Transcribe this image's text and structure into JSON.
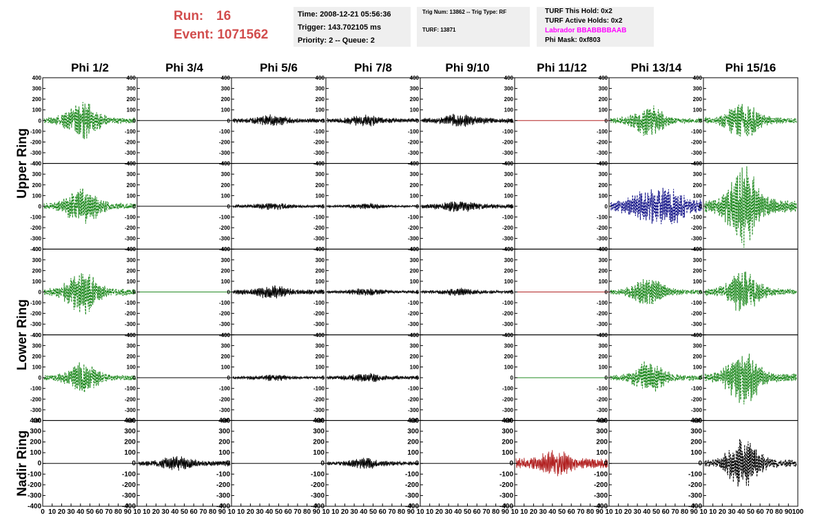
{
  "header": {
    "run_label": "Run:",
    "run_value": "16",
    "event_label": "Event:",
    "event_value": "1071562",
    "time_line": "Time: 2008-12-21 05:56:36",
    "trigger_line": "Trigger: 143.702105 ms",
    "priority_line": "Priority: 2 -- Queue: 2",
    "trig_line": "Trig Num: 13862 -- Trig Type: RF",
    "turf_line": "TURF: 13871",
    "hold_line": "TURF This Hold: 0x2",
    "active_holds_line": "TURF Active Holds: 0x2",
    "labrador_line": "Labrador BBABBBBAAB",
    "phi_mask_line": "Phi Mask: 0xf803"
  },
  "chart_data": {
    "type": "line",
    "columns": [
      "Phi 1/2",
      "Phi 3/4",
      "Phi 5/6",
      "Phi 7/8",
      "Phi 9/10",
      "Phi 11/12",
      "Phi 13/14",
      "Phi 15/16"
    ],
    "ring_labels": [
      "Upper Ring",
      "Lower Ring",
      "Nadir Ring"
    ],
    "ylim": [
      -400,
      400
    ],
    "yticks": [
      "400",
      "300",
      "200",
      "100",
      "0",
      "-100",
      "-200",
      "-300",
      "-400"
    ],
    "xlim": [
      0,
      100
    ],
    "xticks": [
      "0",
      "10",
      "20",
      "30",
      "40",
      "50",
      "60",
      "70",
      "80",
      "90",
      "10",
      "10",
      "20",
      "30",
      "40",
      "50",
      "60",
      "70",
      "80",
      "90",
      "10"
    ],
    "colors": {
      "green": "#228b22",
      "black": "#000000",
      "red": "#b22222",
      "blue": "#1a1a8c",
      "flat_red": "#b22222",
      "flat_green": "#228b22"
    },
    "traces": [
      [
        "green",
        "flat_black",
        "black",
        "black",
        "black",
        "flat_red",
        "green",
        "green"
      ],
      [
        "green",
        "flat_black",
        "black",
        "black",
        "black",
        "none",
        "blue",
        "green"
      ],
      [
        "green",
        "flat_green",
        "black",
        "black",
        "black",
        "flat_red",
        "green",
        "green"
      ],
      [
        "green",
        "flat_black",
        "black",
        "black",
        "none",
        "flat_green",
        "green",
        "green"
      ],
      [
        "flat_black",
        "black",
        "flat_black",
        "black",
        "flat_black",
        "red",
        "flat_black",
        "black_dashed"
      ]
    ],
    "amplitudes": [
      [
        200,
        0,
        60,
        60,
        70,
        0,
        160,
        190
      ],
      [
        200,
        0,
        40,
        30,
        60,
        0,
        200,
        400
      ],
      [
        230,
        0,
        70,
        40,
        40,
        0,
        160,
        210
      ],
      [
        160,
        0,
        35,
        50,
        0,
        0,
        170,
        280
      ],
      [
        0,
        75,
        0,
        55,
        0,
        140,
        0,
        250
      ]
    ]
  }
}
